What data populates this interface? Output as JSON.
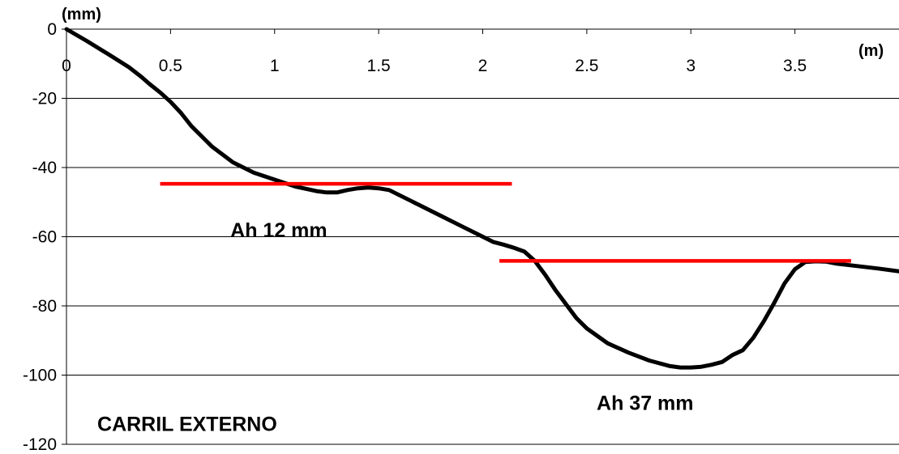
{
  "chart_data": {
    "type": "line",
    "title": "",
    "ylabel": "(mm)",
    "xlabel": "(m)",
    "xlim": [
      0,
      4
    ],
    "ylim": [
      -120,
      0
    ],
    "x_ticks": [
      0,
      0.5,
      1,
      1.5,
      2,
      2.5,
      3,
      3.5
    ],
    "x_tick_labels": [
      "0",
      "0.5",
      "1",
      "1.5",
      "2",
      "2.5",
      "3",
      "3.5"
    ],
    "y_ticks": [
      0,
      -20,
      -40,
      -60,
      -80,
      -100,
      -120
    ],
    "y_tick_labels": [
      "0",
      "-20",
      "-40",
      "-60",
      "-80",
      "-100",
      "-120"
    ],
    "grid": "horizontal",
    "line_color": "#000000",
    "series": [
      {
        "x": [
          0,
          0.1,
          0.2,
          0.3,
          0.36,
          0.4,
          0.45,
          0.5,
          0.55,
          0.6,
          0.7,
          0.8,
          0.9,
          1.0,
          1.1,
          1.2,
          1.25,
          1.3,
          1.35,
          1.4,
          1.45,
          1.5,
          1.55,
          1.6,
          1.7,
          1.8,
          1.9,
          2.0,
          2.05,
          2.1,
          2.15,
          2.2,
          2.25,
          2.3,
          2.35,
          2.4,
          2.45,
          2.5,
          2.6,
          2.7,
          2.8,
          2.9,
          2.95,
          3.0,
          3.05,
          3.1,
          3.15,
          3.2,
          3.25,
          3.3,
          3.35,
          3.4,
          3.45,
          3.5,
          3.55,
          3.6,
          3.65,
          3.7,
          3.8,
          3.9,
          4.0
        ],
        "y": [
          0,
          -3.5,
          -7.2,
          -11,
          -13.8,
          -15.9,
          -18.3,
          -21,
          -24.2,
          -28,
          -34,
          -38.5,
          -41.5,
          -43.5,
          -45.5,
          -46.8,
          -47.2,
          -47.2,
          -46.5,
          -46,
          -45.8,
          -46,
          -46.5,
          -48,
          -51,
          -54,
          -57,
          -60,
          -61.5,
          -62.3,
          -63.2,
          -64.3,
          -67,
          -71,
          -75.5,
          -79.5,
          -83.5,
          -86.5,
          -90.8,
          -93.5,
          -95.8,
          -97.4,
          -97.8,
          -97.8,
          -97.6,
          -97,
          -96.2,
          -94.2,
          -92.8,
          -89.2,
          -84.5,
          -79.2,
          -73.5,
          -69.4,
          -67.3,
          -67.1,
          -67.2,
          -67.8,
          -68.5,
          -69.2,
          -70
        ]
      }
    ],
    "reference_lines": [
      {
        "x_start": 0.45,
        "x_end": 2.14,
        "y": -44.7,
        "color": "#ff0000"
      },
      {
        "x_start": 2.08,
        "x_end": 3.77,
        "y": -67,
        "color": "#ff0000"
      }
    ],
    "annotations": [
      {
        "text": "Ah 12 mm",
        "x": 1.02,
        "y": -58
      },
      {
        "text": "Ah 37 mm",
        "x": 2.78,
        "y": -108
      },
      {
        "text": "CARRIL EXTERNO",
        "x": 0.58,
        "y": -114
      }
    ]
  }
}
